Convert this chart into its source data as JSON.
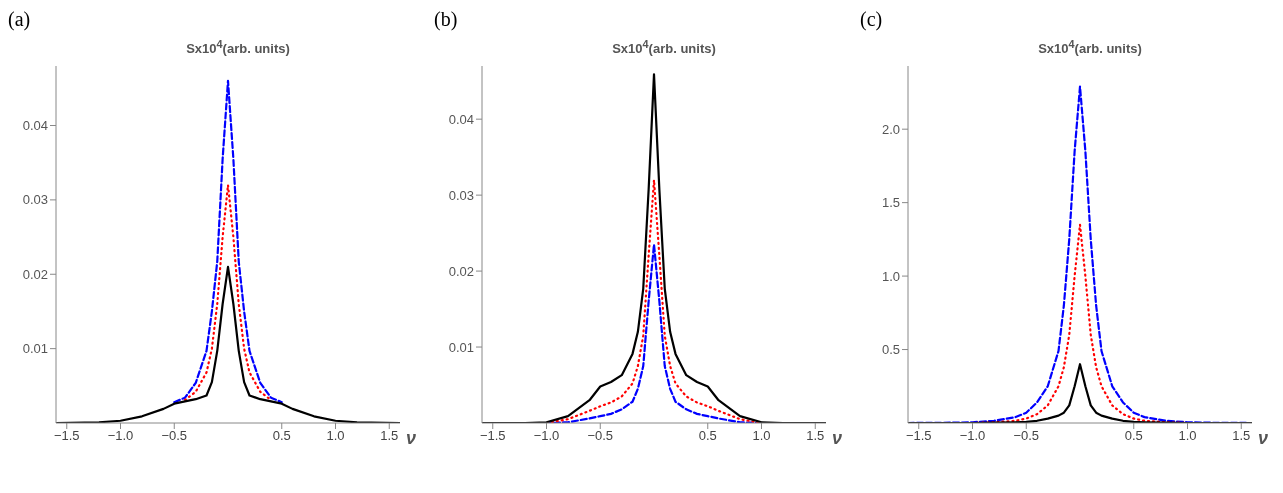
{
  "chart_data": [
    {
      "type": "line",
      "title": "(a)",
      "ylabel": "Sx10$^{4}$(arb. units)",
      "xlabel": "ν",
      "x": [
        -1.6,
        -1.2,
        -1,
        -0.8,
        -0.6,
        -0.5,
        -0.4,
        -0.3,
        -0.2,
        -0.15,
        -0.1,
        -0.05,
        0,
        0.05,
        0.1,
        0.15,
        0.2,
        0.3,
        0.4,
        0.5,
        0.6,
        0.8,
        1,
        1.2,
        1.6
      ],
      "series": [
        {
          "color": "#0000ff",
          "line_style": "dashed",
          "values": [
            null,
            null,
            null,
            null,
            null,
            0.0028,
            0.0034,
            0.0054,
            0.0097,
            0.015,
            0.0217,
            0.0355,
            0.046,
            0.0355,
            0.0217,
            0.015,
            0.0097,
            0.0054,
            0.0034,
            0.0028,
            null,
            null,
            null,
            null,
            null
          ]
        },
        {
          "color": "#ff0000",
          "line_style": "dotted",
          "values": [
            null,
            null,
            null,
            null,
            null,
            null,
            0.0031,
            0.0042,
            0.0068,
            0.01,
            0.016,
            0.025,
            0.032,
            0.025,
            0.016,
            0.01,
            0.0068,
            0.0042,
            0.0031,
            null,
            null,
            null,
            null,
            null,
            null
          ]
        },
        {
          "color": "#000000",
          "line_style": "solid",
          "values": [
            0,
            0.0001,
            0.0003,
            0.0009,
            0.0019,
            0.0026,
            0.0029,
            0.0032,
            0.0037,
            0.0055,
            0.0097,
            0.016,
            0.021,
            0.016,
            0.0097,
            0.0055,
            0.0037,
            0.0032,
            0.0029,
            0.0026,
            0.0019,
            0.0009,
            0.0003,
            0.0001,
            0
          ]
        }
      ],
      "xlim": [
        -1.6,
        1.6
      ],
      "xticks": [
        {
          "value": -1.5,
          "label": "−1.5"
        },
        {
          "value": -1,
          "label": "−1.0"
        },
        {
          "value": -0.5,
          "label": "−0.5"
        },
        {
          "value": 0.5,
          "label": "0.5"
        },
        {
          "value": 1,
          "label": "1.0"
        },
        {
          "value": 1.5,
          "label": "1.5"
        }
      ],
      "ylim": [
        0,
        0.048
      ],
      "yticks": [
        0.01,
        0.02,
        0.03,
        0.04
      ]
    },
    {
      "type": "line",
      "title": "(b)",
      "ylabel": "Sx10$^{4}$(arb. units)",
      "xlabel": "ν",
      "x": [
        -1.6,
        -1.2,
        -1,
        -0.8,
        -0.6,
        -0.5,
        -0.4,
        -0.3,
        -0.2,
        -0.15,
        -0.1,
        -0.05,
        0,
        0.05,
        0.1,
        0.15,
        0.2,
        0.3,
        0.4,
        0.5,
        0.6,
        0.8,
        1,
        1.2,
        1.6
      ],
      "series": [
        {
          "color": "#0000ff",
          "line_style": "dashed",
          "values": [
            0,
            0,
            0,
            0.0001,
            0.0006,
            0.0009,
            0.0012,
            0.0018,
            0.0028,
            0.0045,
            0.0075,
            0.016,
            0.0235,
            0.016,
            0.0075,
            0.0045,
            0.0028,
            0.0018,
            0.0012,
            0.0009,
            0.0006,
            0.0001,
            0,
            0,
            0
          ]
        },
        {
          "color": "#ff0000",
          "line_style": "dotted",
          "values": [
            0,
            0,
            0,
            0.0005,
            0.0016,
            0.0022,
            0.0027,
            0.0035,
            0.0052,
            0.0075,
            0.0115,
            0.022,
            0.032,
            0.022,
            0.0115,
            0.0075,
            0.0052,
            0.0035,
            0.0027,
            0.0022,
            0.0016,
            0.0005,
            0,
            0,
            0
          ]
        },
        {
          "color": "#000000",
          "line_style": "solid",
          "values": [
            0,
            0,
            0.0001,
            0.0009,
            0.003,
            0.0048,
            0.0054,
            0.0063,
            0.0091,
            0.012,
            0.0177,
            0.0307,
            0.0459,
            0.0307,
            0.0177,
            0.012,
            0.0091,
            0.0063,
            0.0054,
            0.0048,
            0.003,
            0.0009,
            0.0001,
            0,
            0
          ]
        }
      ],
      "xlim": [
        -1.6,
        1.6
      ],
      "xticks": [
        {
          "value": -1.5,
          "label": "−1.5"
        },
        {
          "value": -1,
          "label": "−1.0"
        },
        {
          "value": -0.5,
          "label": "−0.5"
        },
        {
          "value": 0.5,
          "label": "0.5"
        },
        {
          "value": 1,
          "label": "1.0"
        },
        {
          "value": 1.5,
          "label": "1.5"
        }
      ],
      "ylim": [
        0,
        0.047
      ],
      "yticks": [
        0.01,
        0.02,
        0.03,
        0.04
      ]
    },
    {
      "type": "line",
      "title": "(c)",
      "ylabel": "Sx10$^{4}$(arb. units)",
      "xlabel": "ν",
      "x": [
        -1.6,
        -1.2,
        -1,
        -0.8,
        -0.6,
        -0.5,
        -0.4,
        -0.3,
        -0.2,
        -0.15,
        -0.1,
        -0.05,
        0,
        0.05,
        0.1,
        0.15,
        0.2,
        0.3,
        0.4,
        0.5,
        0.6,
        0.8,
        1,
        1.2,
        1.6
      ],
      "series": [
        {
          "color": "#0000ff",
          "line_style": "dashed",
          "values": [
            0,
            0.002,
            0.005,
            0.015,
            0.04,
            0.07,
            0.14,
            0.25,
            0.49,
            0.8,
            1.25,
            1.85,
            2.29,
            1.85,
            1.25,
            0.8,
            0.49,
            0.25,
            0.14,
            0.07,
            0.04,
            0.015,
            0.005,
            0.002,
            0
          ]
        },
        {
          "color": "#ff0000",
          "line_style": "dotted",
          "values": [
            null,
            null,
            0,
            0.005,
            0.015,
            0.03,
            0.06,
            0.12,
            0.25,
            0.38,
            0.6,
            1.0,
            1.35,
            1.0,
            0.6,
            0.38,
            0.25,
            0.12,
            0.06,
            0.03,
            0.015,
            0.005,
            0,
            null,
            null
          ]
        },
        {
          "color": "#000000",
          "line_style": "solid",
          "values": [
            0,
            0,
            0,
            0.002,
            0.005,
            0.008,
            0.015,
            0.03,
            0.05,
            0.07,
            0.12,
            0.25,
            0.4,
            0.25,
            0.12,
            0.07,
            0.05,
            0.03,
            0.015,
            0.008,
            0.005,
            0.002,
            0,
            0,
            0
          ]
        }
      ],
      "xlim": [
        -1.6,
        1.6
      ],
      "xticks": [
        {
          "value": -1.5,
          "label": "−1.5"
        },
        {
          "value": -1,
          "label": "−1.0"
        },
        {
          "value": -0.5,
          "label": "−0.5"
        },
        {
          "value": 0.5,
          "label": "0.5"
        },
        {
          "value": 1,
          "label": "1.0"
        },
        {
          "value": 1.5,
          "label": "1.5"
        }
      ],
      "ylim": [
        0,
        2.43
      ],
      "yticks": [
        {
          "value": 0.5,
          "label": "0.5"
        },
        {
          "value": 1,
          "label": "1.0"
        },
        {
          "value": 1.5,
          "label": "1.5"
        },
        {
          "value": 2,
          "label": "2.0"
        }
      ]
    }
  ]
}
